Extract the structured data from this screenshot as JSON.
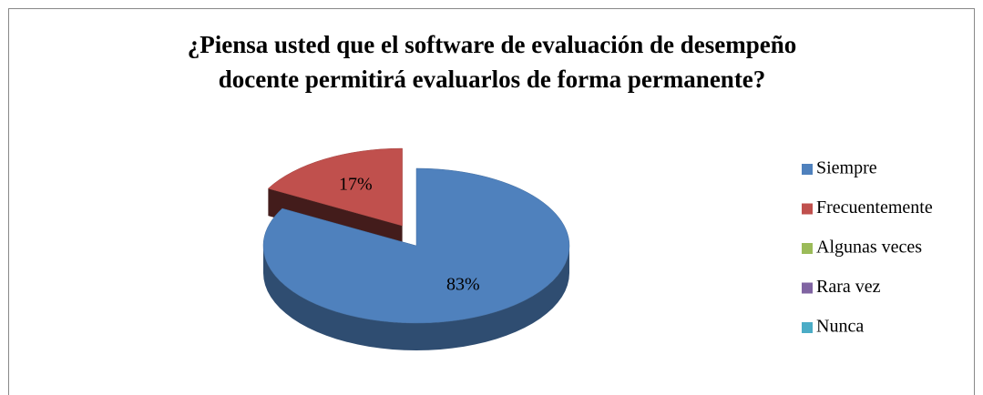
{
  "chart_data": {
    "type": "pie3d",
    "title": [
      "¿Piensa usted que el software de evaluación de desempeño",
      "docente permitirá evaluarlos de forma permanente?"
    ],
    "categories": [
      "Siempre",
      "Frecuentemente",
      "Algunas veces",
      "Rara vez",
      "Nunca"
    ],
    "values": [
      83,
      17,
      0,
      0,
      0
    ],
    "value_labels": [
      "83%",
      "17%",
      null,
      null,
      null
    ],
    "colors": [
      "#4f81bd",
      "#c0504d",
      "#9bbb59",
      "#8064a2",
      "#4bacc6"
    ],
    "exploded": [
      false,
      true,
      false,
      false,
      false
    ],
    "legend": "right"
  }
}
